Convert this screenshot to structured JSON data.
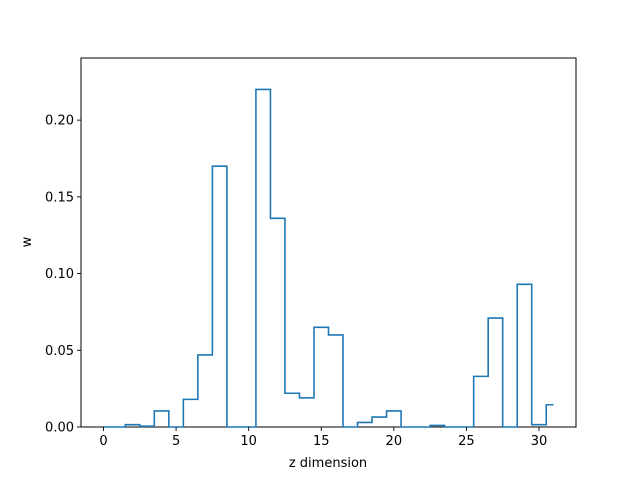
{
  "chart_data": {
    "type": "step",
    "xlabel": "z dimension",
    "ylabel": "w",
    "xlim": [
      -1.55,
      32.55
    ],
    "ylim": [
      0,
      0.2405
    ],
    "xticks": [
      0,
      5,
      10,
      15,
      20,
      25,
      30
    ],
    "yticks": [
      0.0,
      0.05,
      0.1,
      0.15,
      0.2
    ],
    "xtick_labels": [
      "0",
      "5",
      "10",
      "15",
      "20",
      "25",
      "30"
    ],
    "ytick_labels": [
      "0.00",
      "0.05",
      "0.10",
      "0.15",
      "0.20"
    ],
    "series": [
      {
        "color": "#1f77b4",
        "step_where": "mid",
        "x": [
          0,
          1,
          2,
          3,
          4,
          5,
          6,
          7,
          8,
          9,
          10,
          11,
          12,
          13,
          14,
          15,
          16,
          17,
          18,
          19,
          20,
          21,
          22,
          23,
          24,
          25,
          26,
          27,
          28,
          29,
          30,
          31
        ],
        "y": [
          0.0,
          0.0,
          0.0015,
          0.0005,
          0.0105,
          0.0,
          0.018,
          0.047,
          0.17,
          0.0,
          0.0,
          0.22,
          0.136,
          0.022,
          0.019,
          0.065,
          0.06,
          0.0,
          0.003,
          0.0065,
          0.0105,
          0.0,
          0.0,
          0.001,
          0.0,
          0.0,
          0.033,
          0.071,
          0.0,
          0.093,
          0.0015,
          0.0145
        ]
      }
    ]
  }
}
